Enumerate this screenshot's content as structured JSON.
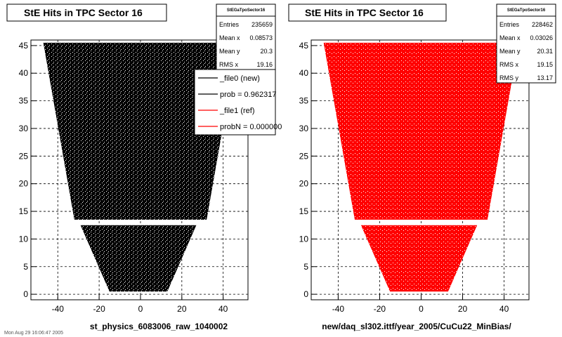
{
  "chart_data": [
    {
      "type": "scatter",
      "title": "StE Hits in TPC Sector 16",
      "xlabel": "",
      "ylabel": "",
      "caption": "st_physics_6083006_raw_1040002",
      "xlim": [
        -53,
        52
      ],
      "ylim": [
        -1,
        46
      ],
      "xticks": [
        -40,
        -20,
        0,
        20,
        40
      ],
      "yticks": [
        0,
        5,
        10,
        15,
        20,
        25,
        30,
        35,
        40,
        45
      ],
      "grid": true,
      "color": "#000000",
      "shape": {
        "outer": {
          "y_range": [
            13.5,
            45.5
          ],
          "x_half_width_at_y_min": 32,
          "x_half_width_at_y_max": 47,
          "center_x": 0
        },
        "inner": {
          "y_range": [
            0.5,
            12.5
          ],
          "x_half_width_at_y_min": 14,
          "x_half_width_at_y_max": 28,
          "center_x": -1
        },
        "gap": [
          12.5,
          13.5
        ]
      },
      "stats": {
        "name": "StEGaTpoSector16",
        "rows": [
          {
            "label": "Entries",
            "value": "235659"
          },
          {
            "label": "Mean x",
            "value": "0.08573"
          },
          {
            "label": "Mean y",
            "value": "20.3"
          },
          {
            "label": "RMS x",
            "value": "19.16"
          }
        ]
      },
      "legend": {
        "placement": "top-right",
        "entries": [
          {
            "label": "_file0 (new)",
            "color": "#000000"
          },
          {
            "label": "prob = 0.962317",
            "color": "#000000"
          },
          {
            "label": "_file1 (ref)",
            "color": "#ff0000"
          },
          {
            "label": "probN = 0.000000",
            "color": "#ff0000"
          }
        ]
      }
    },
    {
      "type": "scatter",
      "title": "StE Hits in TPC Sector 16",
      "xlabel": "",
      "ylabel": "",
      "caption": "new/daq_sl302.ittf/year_2005/CuCu22_MinBias/",
      "xlim": [
        -53,
        52
      ],
      "ylim": [
        -1,
        46
      ],
      "xticks": [
        -40,
        -20,
        0,
        20,
        40
      ],
      "yticks": [
        0,
        5,
        10,
        15,
        20,
        25,
        30,
        35,
        40,
        45
      ],
      "grid": true,
      "color": "#ff0000",
      "shape": {
        "outer": {
          "y_range": [
            13.5,
            45.5
          ],
          "x_half_width_at_y_min": 32,
          "x_half_width_at_y_max": 47,
          "center_x": 0
        },
        "inner": {
          "y_range": [
            0.5,
            12.5
          ],
          "x_half_width_at_y_min": 14,
          "x_half_width_at_y_max": 28,
          "center_x": -1
        },
        "gap": [
          12.5,
          13.5
        ]
      },
      "stats": {
        "name": "StEGaTpoSector16",
        "rows": [
          {
            "label": "Entries",
            "value": "228462"
          },
          {
            "label": "Mean x",
            "value": "0.03026"
          },
          {
            "label": "Mean y",
            "value": "20.31"
          },
          {
            "label": "RMS x",
            "value": "19.15"
          },
          {
            "label": "RMS y",
            "value": "13.17"
          }
        ]
      }
    }
  ],
  "footer": "Mon Aug 29 16:06:47 2005"
}
